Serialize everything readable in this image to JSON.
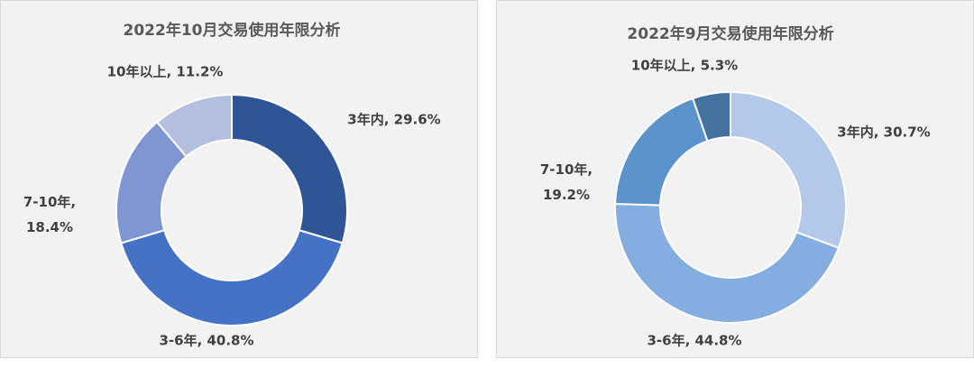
{
  "chart_data": [
    {
      "type": "donut",
      "title": "2022年10月交易使用年限分析",
      "values": [
        29.6,
        40.8,
        18.4,
        11.2
      ],
      "value_labels": [
        "3年内, 29.6%",
        "3-6年, 40.8%",
        "7-10年, 18.4%",
        "10年以上, 11.2%"
      ],
      "colors": [
        "#2f5597",
        "#4472c4",
        "#7f96d3",
        "#b4bfe0"
      ]
    },
    {
      "type": "donut",
      "title": "2022年9月交易使用年限分析",
      "values": [
        30.7,
        44.8,
        19.2,
        5.3
      ],
      "value_labels": [
        "3年内, 30.7%",
        "3-6年, 44.8%",
        "7-10年, 19.2%",
        "10年以上, 5.3%"
      ],
      "colors": [
        "#b4c9e8",
        "#84aedf",
        "#5b93cc",
        "#44719f"
      ]
    }
  ]
}
